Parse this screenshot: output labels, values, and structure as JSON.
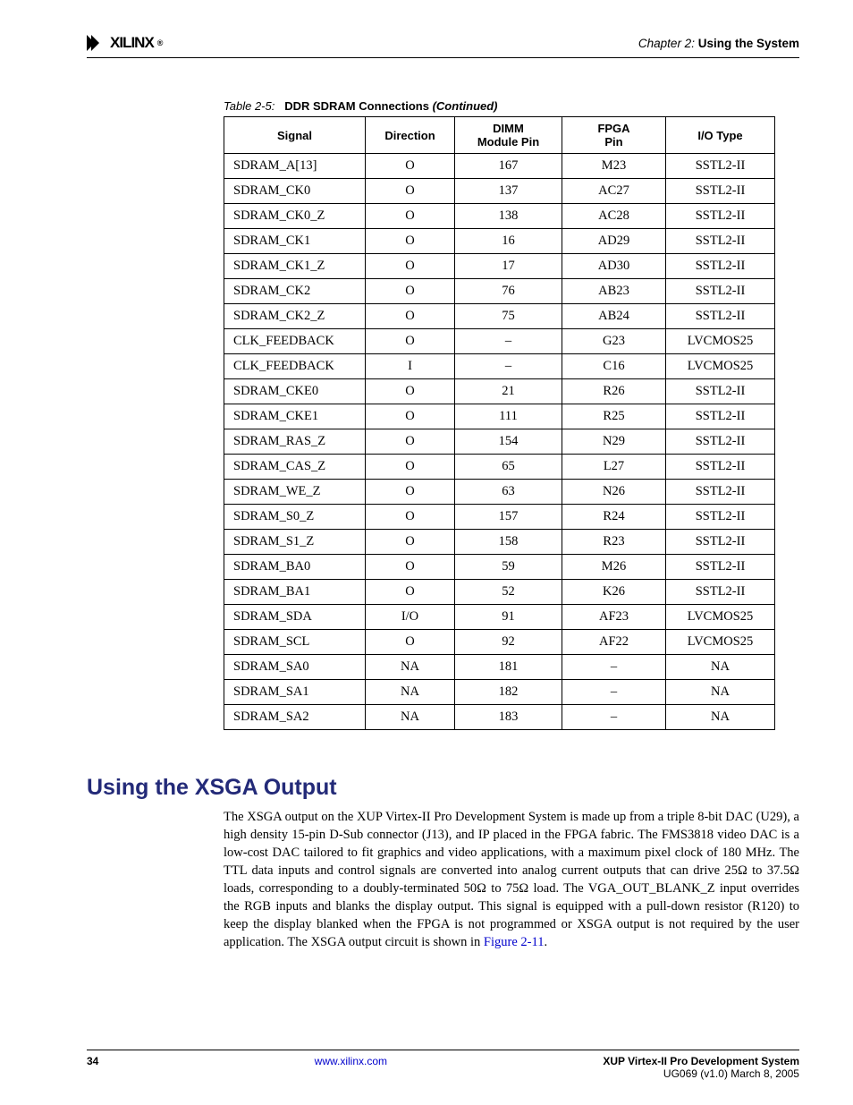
{
  "header": {
    "logo_text": "XILINX",
    "chapter_label": "Chapter 2:",
    "chapter_title": "Using the System"
  },
  "table": {
    "caption_label": "Table 2-5:",
    "caption_title": "DDR SDRAM Connections",
    "caption_cont": "(Continued)",
    "headers": [
      "Signal",
      "Direction",
      "DIMM Module Pin",
      "FPGA Pin",
      "I/O Type"
    ],
    "rows": [
      [
        "SDRAM_A[13]",
        "O",
        "167",
        "M23",
        "SSTL2-II"
      ],
      [
        "SDRAM_CK0",
        "O",
        "137",
        "AC27",
        "SSTL2-II"
      ],
      [
        "SDRAM_CK0_Z",
        "O",
        "138",
        "AC28",
        "SSTL2-II"
      ],
      [
        "SDRAM_CK1",
        "O",
        "16",
        "AD29",
        "SSTL2-II"
      ],
      [
        "SDRAM_CK1_Z",
        "O",
        "17",
        "AD30",
        "SSTL2-II"
      ],
      [
        "SDRAM_CK2",
        "O",
        "76",
        "AB23",
        "SSTL2-II"
      ],
      [
        "SDRAM_CK2_Z",
        "O",
        "75",
        "AB24",
        "SSTL2-II"
      ],
      [
        "CLK_FEEDBACK",
        "O",
        "–",
        "G23",
        "LVCMOS25"
      ],
      [
        "CLK_FEEDBACK",
        "I",
        "–",
        "C16",
        "LVCMOS25"
      ],
      [
        "SDRAM_CKE0",
        "O",
        "21",
        "R26",
        "SSTL2-II"
      ],
      [
        "SDRAM_CKE1",
        "O",
        "111",
        "R25",
        "SSTL2-II"
      ],
      [
        "SDRAM_RAS_Z",
        "O",
        "154",
        "N29",
        "SSTL2-II"
      ],
      [
        "SDRAM_CAS_Z",
        "O",
        "65",
        "L27",
        "SSTL2-II"
      ],
      [
        "SDRAM_WE_Z",
        "O",
        "63",
        "N26",
        "SSTL2-II"
      ],
      [
        "SDRAM_S0_Z",
        "O",
        "157",
        "R24",
        "SSTL2-II"
      ],
      [
        "SDRAM_S1_Z",
        "O",
        "158",
        "R23",
        "SSTL2-II"
      ],
      [
        "SDRAM_BA0",
        "O",
        "59",
        "M26",
        "SSTL2-II"
      ],
      [
        "SDRAM_BA1",
        "O",
        "52",
        "K26",
        "SSTL2-II"
      ],
      [
        "SDRAM_SDA",
        "I/O",
        "91",
        "AF23",
        "LVCMOS25"
      ],
      [
        "SDRAM_SCL",
        "O",
        "92",
        "AF22",
        "LVCMOS25"
      ],
      [
        "SDRAM_SA0",
        "NA",
        "181",
        "–",
        "NA"
      ],
      [
        "SDRAM_SA1",
        "NA",
        "182",
        "–",
        "NA"
      ],
      [
        "SDRAM_SA2",
        "NA",
        "183",
        "–",
        "NA"
      ]
    ]
  },
  "section": {
    "heading": "Using the XSGA Output",
    "paragraph": "The XSGA output on the XUP Virtex-II Pro Development System is made up from a triple 8-bit DAC (U29), a high density 15-pin D-Sub connector (J13), and IP placed in the FPGA fabric. The FMS3818 video DAC is a low-cost DAC tailored to fit graphics and video applications, with a maximum pixel clock of 180 MHz. The TTL data inputs and control signals are converted into analog current outputs that can drive 25Ω to 37.5Ω loads, corresponding to a doubly-terminated 50Ω to 75Ω load. The VGA_OUT_BLANK_Z input overrides the RGB inputs and blanks the display output. This signal is equipped with a pull-down resistor (R120) to keep the display blanked when the FPGA is not programmed or XSGA output is not required by the user application. The XSGA output circuit is shown in ",
    "figure_ref": "Figure 2-11",
    "period": "."
  },
  "footer": {
    "page": "34",
    "url": "www.xilinx.com",
    "doc_title": "XUP  Virtex-II Pro Development System",
    "doc_id": "UG069 (v1.0) March 8, 2005"
  }
}
